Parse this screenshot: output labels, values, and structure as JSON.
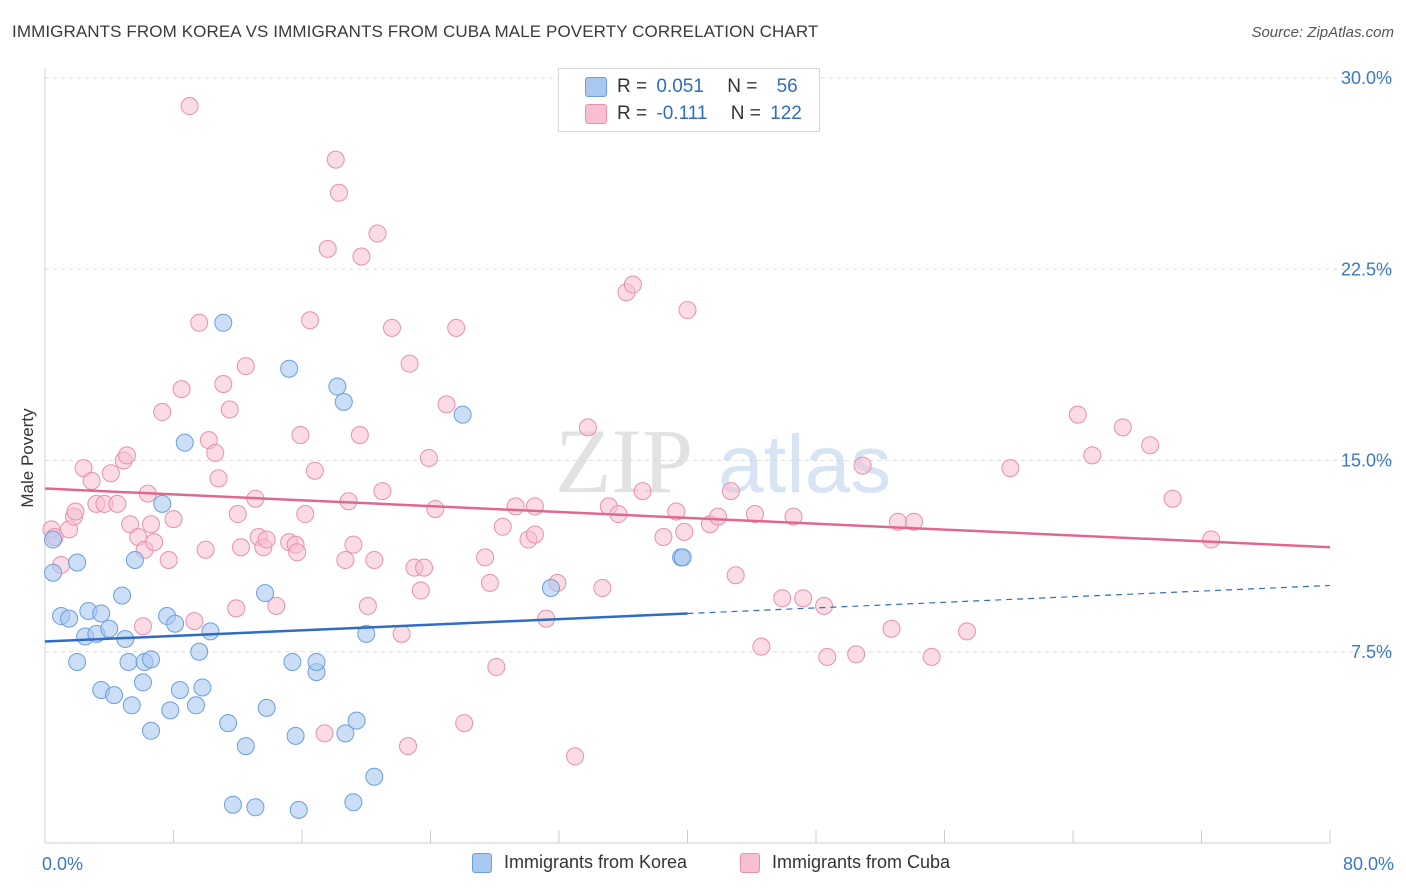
{
  "header": {
    "title": "IMMIGRANTS FROM KOREA VS IMMIGRANTS FROM CUBA MALE POVERTY CORRELATION CHART",
    "source": "Source: ZipAtlas.com"
  },
  "legend": {
    "rows": [
      {
        "r_label": "R =",
        "r_value": "0.051",
        "n_label": "N =",
        "n_value": "56"
      },
      {
        "r_label": "R =",
        "r_value": "-0.111",
        "n_label": "N =",
        "n_value": "122"
      }
    ]
  },
  "colors": {
    "korea_fill": "#a9c8f0",
    "korea_stroke": "#6a9fe0",
    "korea_line": "#2f6cc4",
    "cuba_fill": "#f7bfd0",
    "cuba_stroke": "#ea8fad",
    "cuba_line": "#e06890",
    "grid": "#dedede",
    "tick_label": "#3a78c8"
  },
  "watermark": {
    "zip": "ZIP",
    "atlas": "atlas"
  },
  "chart_data": {
    "type": "scatter",
    "title": "IMMIGRANTS FROM KOREA VS IMMIGRANTS FROM CUBA MALE POVERTY CORRELATION CHART",
    "xlabel": "",
    "ylabel": "Male Poverty",
    "xlim": [
      0,
      80
    ],
    "ylim": [
      0,
      30
    ],
    "x_tick_labels": {
      "min": "0.0%",
      "max": "80.0%"
    },
    "y_ticks": [
      {
        "value": 7.5,
        "label": "7.5%"
      },
      {
        "value": 15,
        "label": "15.0%"
      },
      {
        "value": 22.5,
        "label": "22.5%"
      },
      {
        "value": 30,
        "label": "30.0%"
      }
    ],
    "x_tick_values": [
      0,
      8,
      16,
      24,
      32,
      40,
      48,
      56,
      64,
      72,
      80
    ],
    "grid": true,
    "series": [
      {
        "name": "Immigrants from Korea",
        "r": 0.051,
        "n": 56,
        "trend": {
          "x0": 0,
          "y0": 7.9,
          "x1": 40,
          "y1": 9.0,
          "dashed_to_x": 80,
          "dashed_to_y": 10.1
        },
        "points": [
          [
            0.5,
            11.9
          ],
          [
            0.5,
            10.6
          ],
          [
            1.0,
            8.9
          ],
          [
            1.5,
            8.8
          ],
          [
            2.0,
            11.0
          ],
          [
            2.0,
            7.1
          ],
          [
            2.5,
            8.1
          ],
          [
            2.7,
            9.1
          ],
          [
            3.2,
            8.2
          ],
          [
            3.5,
            9.0
          ],
          [
            3.5,
            6.0
          ],
          [
            4.0,
            8.4
          ],
          [
            4.3,
            5.8
          ],
          [
            4.8,
            9.7
          ],
          [
            5.0,
            8.0
          ],
          [
            5.2,
            7.1
          ],
          [
            5.4,
            5.4
          ],
          [
            5.6,
            11.1
          ],
          [
            6.1,
            6.3
          ],
          [
            6.2,
            7.1
          ],
          [
            6.6,
            4.4
          ],
          [
            6.6,
            7.2
          ],
          [
            7.3,
            13.3
          ],
          [
            7.6,
            8.9
          ],
          [
            7.8,
            5.2
          ],
          [
            8.1,
            8.6
          ],
          [
            8.4,
            6.0
          ],
          [
            8.7,
            15.7
          ],
          [
            9.4,
            5.4
          ],
          [
            9.6,
            7.5
          ],
          [
            9.8,
            6.1
          ],
          [
            10.3,
            8.3
          ],
          [
            11.1,
            20.4
          ],
          [
            11.4,
            4.7
          ],
          [
            11.7,
            1.5
          ],
          [
            12.5,
            3.8
          ],
          [
            13.1,
            1.4
          ],
          [
            13.7,
            9.8
          ],
          [
            13.8,
            5.3
          ],
          [
            15.2,
            18.6
          ],
          [
            15.4,
            7.1
          ],
          [
            15.6,
            4.2
          ],
          [
            15.8,
            1.3
          ],
          [
            16.9,
            6.7
          ],
          [
            16.9,
            7.1
          ],
          [
            18.2,
            17.9
          ],
          [
            18.6,
            17.3
          ],
          [
            18.7,
            4.3
          ],
          [
            19.2,
            1.6
          ],
          [
            19.4,
            4.8
          ],
          [
            20.0,
            8.2
          ],
          [
            20.5,
            2.6
          ],
          [
            26.0,
            16.8
          ],
          [
            31.5,
            10.0
          ],
          [
            39.6,
            11.2
          ],
          [
            39.7,
            11.2
          ]
        ]
      },
      {
        "name": "Immigrants from Cuba",
        "r": -0.111,
        "n": 122,
        "trend": {
          "x0": 0,
          "y0": 13.9,
          "x1": 80,
          "y1": 11.6
        },
        "points": [
          [
            0.4,
            12.3
          ],
          [
            0.6,
            12.0
          ],
          [
            1.0,
            10.9
          ],
          [
            1.5,
            12.3
          ],
          [
            1.8,
            12.8
          ],
          [
            1.9,
            13.0
          ],
          [
            2.4,
            14.7
          ],
          [
            2.9,
            14.2
          ],
          [
            3.2,
            13.3
          ],
          [
            3.7,
            13.3
          ],
          [
            4.1,
            14.5
          ],
          [
            4.5,
            13.3
          ],
          [
            4.9,
            15.0
          ],
          [
            5.1,
            15.2
          ],
          [
            5.3,
            12.5
          ],
          [
            5.8,
            12.0
          ],
          [
            6.1,
            8.5
          ],
          [
            6.2,
            11.5
          ],
          [
            6.4,
            13.7
          ],
          [
            6.6,
            12.5
          ],
          [
            6.8,
            11.8
          ],
          [
            7.3,
            16.9
          ],
          [
            7.7,
            11.1
          ],
          [
            8.0,
            12.7
          ],
          [
            8.5,
            17.8
          ],
          [
            9.0,
            28.9
          ],
          [
            9.3,
            8.7
          ],
          [
            9.6,
            20.4
          ],
          [
            10.0,
            11.5
          ],
          [
            10.2,
            15.8
          ],
          [
            10.6,
            15.3
          ],
          [
            10.8,
            14.3
          ],
          [
            11.1,
            18.0
          ],
          [
            11.5,
            17.0
          ],
          [
            11.9,
            9.2
          ],
          [
            12.0,
            12.9
          ],
          [
            12.2,
            11.6
          ],
          [
            12.5,
            18.7
          ],
          [
            13.1,
            13.5
          ],
          [
            13.3,
            12.0
          ],
          [
            13.6,
            11.6
          ],
          [
            13.8,
            11.9
          ],
          [
            14.4,
            9.3
          ],
          [
            15.2,
            11.8
          ],
          [
            15.6,
            11.7
          ],
          [
            15.7,
            11.4
          ],
          [
            15.9,
            16.0
          ],
          [
            16.2,
            12.9
          ],
          [
            16.5,
            20.5
          ],
          [
            16.8,
            14.6
          ],
          [
            17.4,
            4.3
          ],
          [
            17.6,
            23.3
          ],
          [
            18.1,
            26.8
          ],
          [
            18.3,
            25.5
          ],
          [
            18.7,
            11.1
          ],
          [
            18.9,
            13.4
          ],
          [
            19.2,
            11.7
          ],
          [
            19.6,
            16.0
          ],
          [
            19.7,
            23.0
          ],
          [
            20.1,
            9.3
          ],
          [
            20.5,
            11.1
          ],
          [
            20.7,
            23.9
          ],
          [
            21.0,
            13.8
          ],
          [
            21.6,
            20.2
          ],
          [
            22.2,
            8.2
          ],
          [
            22.6,
            3.8
          ],
          [
            22.7,
            18.8
          ],
          [
            23.0,
            10.8
          ],
          [
            23.4,
            9.9
          ],
          [
            23.6,
            10.8
          ],
          [
            23.9,
            15.1
          ],
          [
            24.3,
            13.1
          ],
          [
            25.0,
            17.2
          ],
          [
            25.6,
            20.2
          ],
          [
            26.1,
            4.7
          ],
          [
            27.4,
            11.2
          ],
          [
            27.7,
            10.2
          ],
          [
            28.1,
            6.9
          ],
          [
            28.5,
            12.4
          ],
          [
            29.3,
            13.2
          ],
          [
            30.1,
            11.9
          ],
          [
            30.5,
            12.1
          ],
          [
            30.5,
            13.2
          ],
          [
            31.2,
            8.8
          ],
          [
            31.9,
            10.2
          ],
          [
            33.0,
            3.4
          ],
          [
            33.8,
            16.3
          ],
          [
            34.7,
            10.0
          ],
          [
            35.1,
            13.2
          ],
          [
            35.7,
            12.9
          ],
          [
            36.2,
            21.6
          ],
          [
            36.6,
            21.9
          ],
          [
            37.2,
            13.8
          ],
          [
            38.5,
            12.0
          ],
          [
            39.3,
            13.0
          ],
          [
            39.8,
            12.2
          ],
          [
            40.0,
            20.9
          ],
          [
            41.4,
            12.5
          ],
          [
            41.9,
            12.8
          ],
          [
            42.7,
            13.8
          ],
          [
            43.0,
            10.5
          ],
          [
            44.2,
            12.9
          ],
          [
            44.6,
            7.7
          ],
          [
            45.9,
            9.6
          ],
          [
            46.6,
            12.8
          ],
          [
            47.2,
            9.6
          ],
          [
            48.5,
            9.3
          ],
          [
            48.7,
            7.3
          ],
          [
            50.5,
            7.4
          ],
          [
            50.9,
            14.8
          ],
          [
            52.7,
            8.4
          ],
          [
            53.1,
            12.6
          ],
          [
            54.1,
            12.6
          ],
          [
            55.2,
            7.3
          ],
          [
            57.4,
            8.3
          ],
          [
            60.1,
            14.7
          ],
          [
            64.3,
            16.8
          ],
          [
            65.2,
            15.2
          ],
          [
            67.1,
            16.3
          ],
          [
            68.8,
            15.6
          ],
          [
            70.2,
            13.5
          ],
          [
            72.6,
            11.9
          ]
        ]
      }
    ]
  },
  "bottom_legend": {
    "items": [
      {
        "label": "Immigrants from Korea"
      },
      {
        "label": "Immigrants from Cuba"
      }
    ]
  }
}
